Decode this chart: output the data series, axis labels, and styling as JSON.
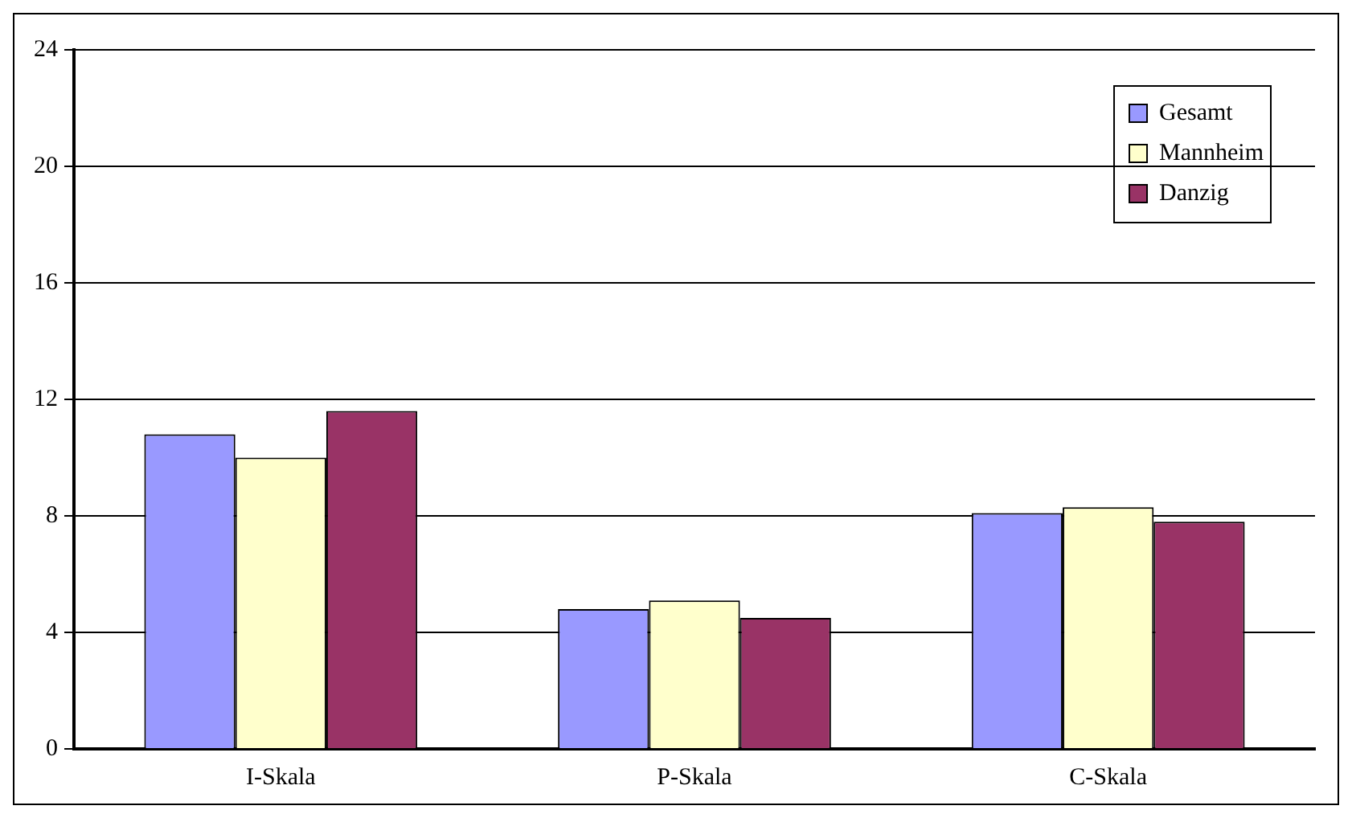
{
  "chart_data": {
    "type": "bar",
    "categories": [
      "I-Skala",
      "P-Skala",
      "C-Skala"
    ],
    "series": [
      {
        "name": "Gesamt",
        "color": "#9999ff",
        "values": [
          10.8,
          4.8,
          8.1
        ]
      },
      {
        "name": "Mannheim",
        "color": "#ffffcc",
        "values": [
          10.0,
          5.1,
          8.3
        ]
      },
      {
        "name": "Danzig",
        "color": "#993366",
        "values": [
          11.6,
          4.5,
          7.8
        ]
      }
    ],
    "ylim": [
      0,
      24
    ],
    "yticks": [
      0,
      4,
      8,
      12,
      16,
      20,
      24
    ],
    "grid": "y",
    "legend": "top right"
  }
}
